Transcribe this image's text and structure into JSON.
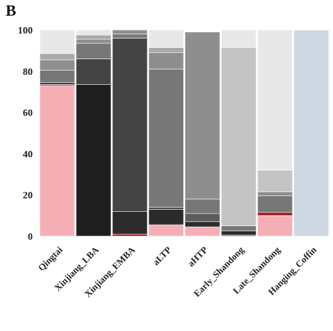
{
  "panel_label": "B",
  "chart_data": {
    "type": "bar",
    "stacked": true,
    "title": "",
    "xlabel": "",
    "ylabel": "",
    "ylim": [
      0,
      100
    ],
    "yticks": [
      0,
      20,
      40,
      60,
      80,
      100
    ],
    "grid": false,
    "legend": "none",
    "categories": [
      "Qingtai",
      "Xinjiang_LBA",
      "Xinjiang_EMBA",
      "aLTP",
      "aHTP",
      "Early_Shandong",
      "Late_Shandong",
      "Hanging_Coffin"
    ],
    "segment_colors": [
      "#f6aeb5",
      "#1e1e1e",
      "#a41a20",
      "#2b2b2b",
      "#444444",
      "#5c5c5c",
      "#777777",
      "#8e8e8e",
      "#a8a8a8",
      "#c4c4c4",
      "#e8e8e8",
      "#cdd8e3"
    ],
    "bars": [
      {
        "category": "Qingtai",
        "segments": [
          {
            "color": "#f6aeb5",
            "value": 73
          },
          {
            "color": "#a41a20",
            "value": 0.5
          },
          {
            "color": "#444444",
            "value": 1
          },
          {
            "color": "#777777",
            "value": 6
          },
          {
            "color": "#8e8e8e",
            "value": 5
          },
          {
            "color": "#a8a8a8",
            "value": 3
          },
          {
            "color": "#e8e8e8",
            "value": 11.5
          }
        ]
      },
      {
        "category": "Xinjiang_LBA",
        "segments": [
          {
            "color": "#1e1e1e",
            "value": 73.5
          },
          {
            "color": "#444444",
            "value": 12.5
          },
          {
            "color": "#777777",
            "value": 7.5
          },
          {
            "color": "#8e8e8e",
            "value": 2
          },
          {
            "color": "#a8a8a8",
            "value": 2
          },
          {
            "color": "#e8e8e8",
            "value": 2.5
          }
        ]
      },
      {
        "category": "Xinjiang_EMBA",
        "segments": [
          {
            "color": "#a41a20",
            "value": 1
          },
          {
            "color": "#2b2b2b",
            "value": 11
          },
          {
            "color": "#444444",
            "value": 84
          },
          {
            "color": "#777777",
            "value": 2
          },
          {
            "color": "#8e8e8e",
            "value": 2
          }
        ]
      },
      {
        "category": "aLTP",
        "segments": [
          {
            "color": "#f6aeb5",
            "value": 5.5
          },
          {
            "color": "#2b2b2b",
            "value": 7.5
          },
          {
            "color": "#444444",
            "value": 1
          },
          {
            "color": "#777777",
            "value": 67
          },
          {
            "color": "#8e8e8e",
            "value": 8
          },
          {
            "color": "#a8a8a8",
            "value": 2.5
          },
          {
            "color": "#e8e8e8",
            "value": 8.5
          }
        ]
      },
      {
        "category": "aHTP",
        "segments": [
          {
            "color": "#f6aeb5",
            "value": 4.5
          },
          {
            "color": "#2b2b2b",
            "value": 2.5
          },
          {
            "color": "#5c5c5c",
            "value": 4
          },
          {
            "color": "#777777",
            "value": 7
          },
          {
            "color": "#8e8e8e",
            "value": 81
          }
        ]
      },
      {
        "category": "Early_Shandong",
        "segments": [
          {
            "color": "#a41a20",
            "value": 0.5
          },
          {
            "color": "#2b2b2b",
            "value": 2
          },
          {
            "color": "#777777",
            "value": 2.5
          },
          {
            "color": "#c4c4c4",
            "value": 86.5
          },
          {
            "color": "#e8e8e8",
            "value": 8.5
          }
        ]
      },
      {
        "category": "Late_Shandong",
        "segments": [
          {
            "color": "#f6aeb5",
            "value": 10
          },
          {
            "color": "#a41a20",
            "value": 1.5
          },
          {
            "color": "#777777",
            "value": 8
          },
          {
            "color": "#8e8e8e",
            "value": 2
          },
          {
            "color": "#c4c4c4",
            "value": 10.5
          },
          {
            "color": "#e8e8e8",
            "value": 68
          }
        ]
      },
      {
        "category": "Hanging_Coffin",
        "segments": [
          {
            "color": "#cdd8e3",
            "value": 100
          }
        ]
      }
    ]
  }
}
